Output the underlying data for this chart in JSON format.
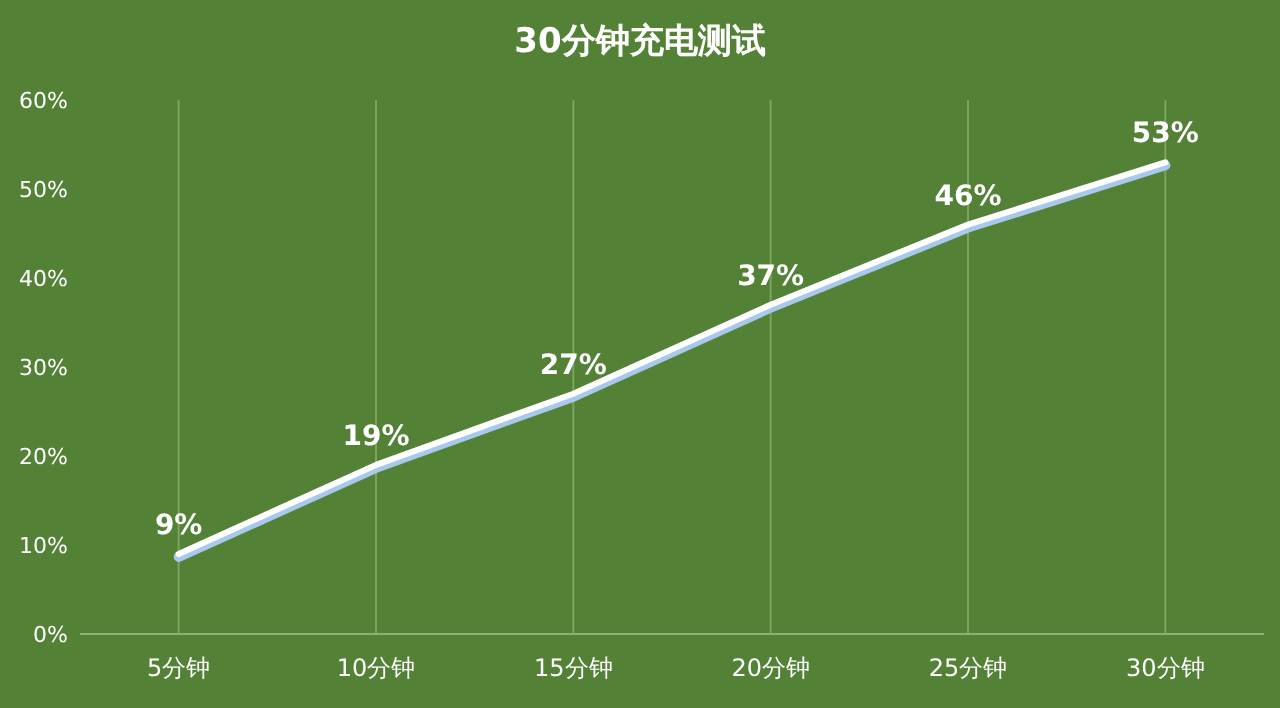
{
  "chart_data": {
    "type": "line",
    "title": "30分钟充电测试",
    "categories": [
      "5分钟",
      "10分钟",
      "15分钟",
      "20分钟",
      "25分钟",
      "30分钟"
    ],
    "series": [
      {
        "color": "#ffffff",
        "values": [
          9,
          19,
          27,
          37,
          46,
          53
        ]
      }
    ],
    "ylim": [
      0,
      60
    ],
    "yticks": [
      {
        "value": 0,
        "label": "0%"
      },
      {
        "value": 10,
        "label": "10%"
      },
      {
        "value": 20,
        "label": "20%"
      },
      {
        "value": 30,
        "label": "30%"
      },
      {
        "value": 40,
        "label": "40%"
      },
      {
        "value": 50,
        "label": "50%"
      },
      {
        "value": 60,
        "label": "60%"
      }
    ],
    "value_labels": [
      "9%",
      "19%",
      "27%",
      "37%",
      "46%",
      "53%"
    ],
    "grid": "x",
    "marker": "none",
    "line_style": "solid"
  }
}
